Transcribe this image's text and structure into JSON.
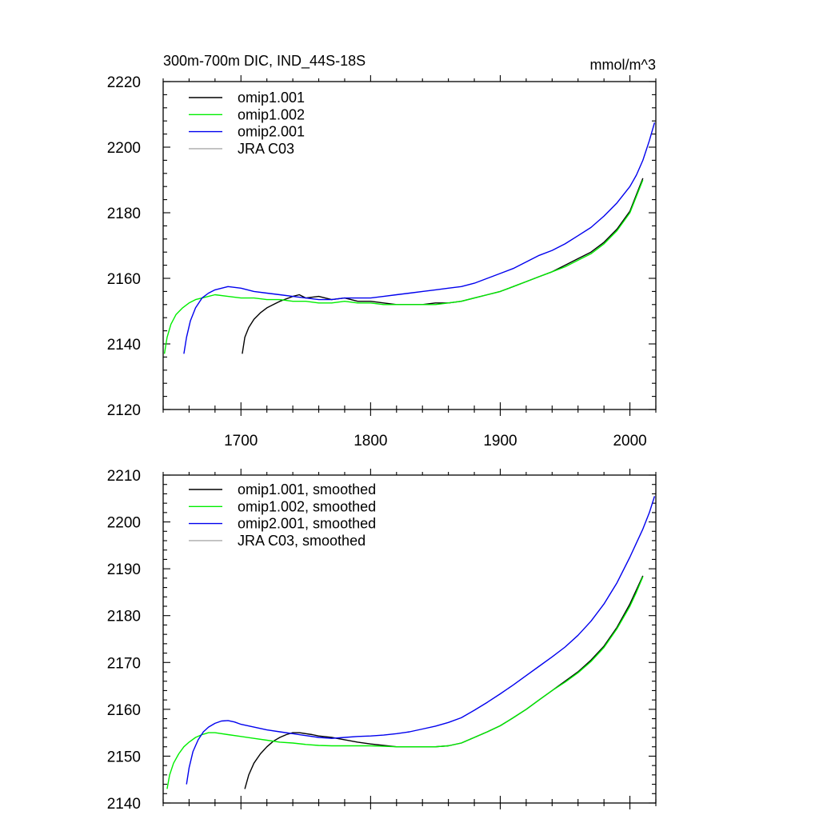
{
  "chart_data": [
    {
      "type": "line",
      "title": "300m-700m DIC, IND_44S-18S",
      "units": "mmol/m^3",
      "xlabel": "",
      "ylabel": "",
      "xlim": [
        1640,
        2020
      ],
      "ylim": [
        2120,
        2220
      ],
      "xticks": [
        "1700",
        "1800",
        "1900",
        "2000"
      ],
      "yticks": [
        "2120",
        "2140",
        "2160",
        "2180",
        "2200",
        "2220"
      ],
      "legend_position": "top-left",
      "series": [
        {
          "name": "omip1.001",
          "color": "#000000",
          "x": [
            1701,
            1703,
            1706,
            1710,
            1715,
            1720,
            1725,
            1730,
            1740,
            1745,
            1750,
            1760,
            1770,
            1780,
            1790,
            1800,
            1810,
            1820,
            1830,
            1840,
            1850,
            1860,
            1870,
            1880,
            1890,
            1900,
            1910,
            1920,
            1930,
            1940,
            1950,
            1960,
            1970,
            1980,
            1990,
            2000,
            2005,
            2010
          ],
          "y": [
            2137,
            2142,
            2145,
            2147.5,
            2149.5,
            2151,
            2152,
            2153,
            2154.5,
            2155,
            2154,
            2154.5,
            2153.5,
            2154,
            2153,
            2153,
            2152.5,
            2152,
            2152,
            2152,
            2152.5,
            2152.5,
            2153,
            2154,
            2155,
            2156,
            2157.5,
            2159,
            2160.5,
            2162,
            2164,
            2166,
            2168,
            2171,
            2175,
            2180.5,
            2185.5,
            2190.5
          ]
        },
        {
          "name": "omip1.002",
          "color": "#00ee00",
          "x": [
            1641,
            1643,
            1646,
            1650,
            1655,
            1660,
            1665,
            1670,
            1680,
            1690,
            1700,
            1710,
            1720,
            1730,
            1740,
            1750,
            1760,
            1770,
            1780,
            1790,
            1800,
            1810,
            1820,
            1830,
            1840,
            1850,
            1860,
            1870,
            1880,
            1890,
            1900,
            1910,
            1920,
            1930,
            1940,
            1950,
            1960,
            1970,
            1980,
            1990,
            2000,
            2005,
            2010
          ],
          "y": [
            2137,
            2142,
            2146,
            2149,
            2151,
            2152.5,
            2153.5,
            2154,
            2155,
            2154.5,
            2154,
            2154,
            2153.5,
            2153.5,
            2153,
            2153,
            2152.5,
            2152.5,
            2153,
            2152.5,
            2152.5,
            2152,
            2152,
            2152,
            2152,
            2152,
            2152.5,
            2153,
            2154,
            2155,
            2156,
            2157.5,
            2159,
            2160.5,
            2162,
            2163.5,
            2165.5,
            2167.5,
            2170.5,
            2174.5,
            2180,
            2185,
            2190
          ]
        },
        {
          "name": "omip2.001",
          "color": "#0000ee",
          "x": [
            1656,
            1658,
            1661,
            1665,
            1670,
            1675,
            1680,
            1690,
            1700,
            1710,
            1720,
            1730,
            1740,
            1750,
            1760,
            1770,
            1780,
            1790,
            1800,
            1810,
            1820,
            1830,
            1840,
            1850,
            1860,
            1870,
            1880,
            1890,
            1900,
            1910,
            1920,
            1930,
            1940,
            1950,
            1960,
            1970,
            1980,
            1990,
            2000,
            2005,
            2010,
            2015,
            2019
          ],
          "y": [
            2137,
            2142,
            2147,
            2151,
            2154,
            2155.5,
            2156.5,
            2157.5,
            2157,
            2156,
            2155.5,
            2155,
            2154.5,
            2154,
            2153.5,
            2153.5,
            2154,
            2154,
            2154,
            2154.5,
            2155,
            2155.5,
            2156,
            2156.5,
            2157,
            2157.5,
            2158.5,
            2160,
            2161.5,
            2163,
            2165,
            2167,
            2168.5,
            2170.5,
            2173,
            2175.5,
            2179,
            2183,
            2188,
            2191.5,
            2196,
            2202,
            2207.5
          ]
        },
        {
          "name": "JRA C03",
          "color": "#aaaaaa",
          "x": [],
          "y": []
        }
      ]
    },
    {
      "type": "line",
      "title": "",
      "xlabel": "",
      "ylabel": "",
      "xlim": [
        1640,
        2020
      ],
      "ylim": [
        2140,
        2210
      ],
      "xticks": [],
      "yticks": [
        "2140",
        "2150",
        "2160",
        "2170",
        "2180",
        "2190",
        "2200",
        "2210"
      ],
      "legend_position": "top-left",
      "series": [
        {
          "name": "omip1.001, smoothed",
          "color": "#000000",
          "x": [
            1703,
            1706,
            1710,
            1715,
            1720,
            1725,
            1730,
            1735,
            1740,
            1745,
            1750,
            1755,
            1760,
            1770,
            1780,
            1790,
            1800,
            1810,
            1820,
            1830,
            1840,
            1850,
            1860,
            1870,
            1880,
            1890,
            1900,
            1910,
            1920,
            1930,
            1940,
            1950,
            1960,
            1970,
            1980,
            1990,
            2000,
            2005,
            2010
          ],
          "y": [
            2143,
            2146,
            2148.5,
            2150.5,
            2152,
            2153.2,
            2154,
            2154.6,
            2155,
            2155,
            2154.8,
            2154.6,
            2154.3,
            2154,
            2153.5,
            2153,
            2152.6,
            2152.3,
            2152,
            2152,
            2152,
            2152,
            2152.2,
            2152.8,
            2154,
            2155.2,
            2156.5,
            2158.2,
            2160,
            2162,
            2164,
            2166,
            2168,
            2170.5,
            2173.5,
            2177.5,
            2182.5,
            2185.5,
            2188.5
          ]
        },
        {
          "name": "omip1.002, smoothed",
          "color": "#00ee00",
          "x": [
            1643,
            1645,
            1648,
            1652,
            1656,
            1660,
            1665,
            1670,
            1675,
            1680,
            1690,
            1700,
            1710,
            1720,
            1730,
            1740,
            1750,
            1760,
            1770,
            1780,
            1790,
            1800,
            1810,
            1820,
            1830,
            1840,
            1850,
            1860,
            1870,
            1880,
            1890,
            1900,
            1910,
            1920,
            1930,
            1940,
            1950,
            1960,
            1970,
            1980,
            1990,
            2000,
            2005,
            2010
          ],
          "y": [
            2143,
            2146,
            2148.5,
            2150.5,
            2152,
            2153,
            2154,
            2154.6,
            2155,
            2155,
            2154.6,
            2154.2,
            2153.8,
            2153.4,
            2153,
            2152.8,
            2152.5,
            2152.3,
            2152.2,
            2152.2,
            2152.2,
            2152.2,
            2152.1,
            2152,
            2152,
            2152,
            2152,
            2152.2,
            2152.8,
            2154,
            2155.2,
            2156.5,
            2158.2,
            2160,
            2162,
            2164,
            2165.8,
            2167.8,
            2170.2,
            2173.2,
            2177.2,
            2182,
            2185,
            2188.3
          ]
        },
        {
          "name": "omip2.001, smoothed",
          "color": "#0000ee",
          "x": [
            1658,
            1660,
            1663,
            1667,
            1671,
            1675,
            1680,
            1685,
            1690,
            1695,
            1700,
            1710,
            1720,
            1730,
            1740,
            1750,
            1760,
            1770,
            1780,
            1790,
            1800,
            1810,
            1820,
            1830,
            1840,
            1850,
            1860,
            1870,
            1880,
            1890,
            1900,
            1910,
            1920,
            1930,
            1940,
            1950,
            1960,
            1970,
            1980,
            1990,
            2000,
            2005,
            2010,
            2015,
            2019
          ],
          "y": [
            2144,
            2147.5,
            2151,
            2153.5,
            2155.2,
            2156.2,
            2157,
            2157.5,
            2157.6,
            2157.3,
            2156.8,
            2156.2,
            2155.6,
            2155.2,
            2154.8,
            2154.4,
            2154,
            2153.8,
            2154,
            2154.2,
            2154.3,
            2154.5,
            2154.8,
            2155.2,
            2155.8,
            2156.4,
            2157.2,
            2158.2,
            2159.8,
            2161.5,
            2163.3,
            2165.2,
            2167.2,
            2169.2,
            2171.2,
            2173.3,
            2175.8,
            2178.8,
            2182.5,
            2187,
            2192.5,
            2195.5,
            2198.5,
            2202,
            2205.5
          ]
        },
        {
          "name": "JRA C03, smoothed",
          "color": "#aaaaaa",
          "x": [],
          "y": []
        }
      ]
    }
  ]
}
